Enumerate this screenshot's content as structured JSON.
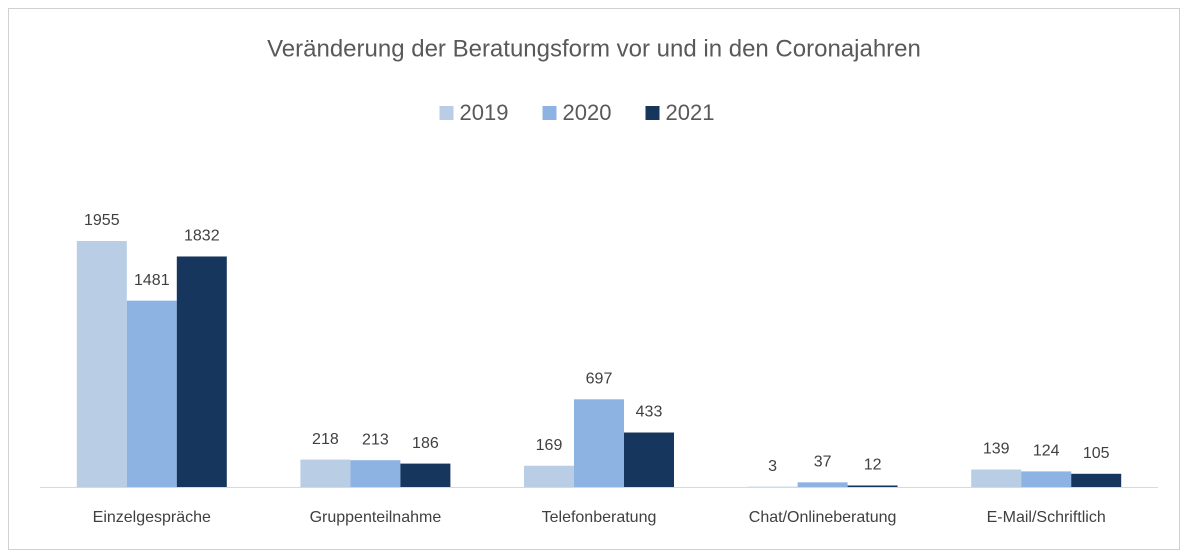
{
  "chart_data": {
    "type": "bar",
    "title": "Veränderung der Beratungsform vor und in den Coronajahren",
    "categories": [
      "Einzelgespräche",
      "Gruppenteilnahme",
      "Telefonberatung",
      "Chat/Onlineberatung",
      "E-Mail/Schriftlich"
    ],
    "series": [
      {
        "name": "2019",
        "color": "#b9cde5",
        "values": [
          1955,
          218,
          169,
          3,
          139
        ]
      },
      {
        "name": "2020",
        "color": "#8db3e2",
        "values": [
          1481,
          213,
          697,
          37,
          124
        ]
      },
      {
        "name": "2021",
        "color": "#17365d",
        "values": [
          1832,
          186,
          433,
          12,
          105
        ]
      }
    ],
    "legend": "top"
  }
}
